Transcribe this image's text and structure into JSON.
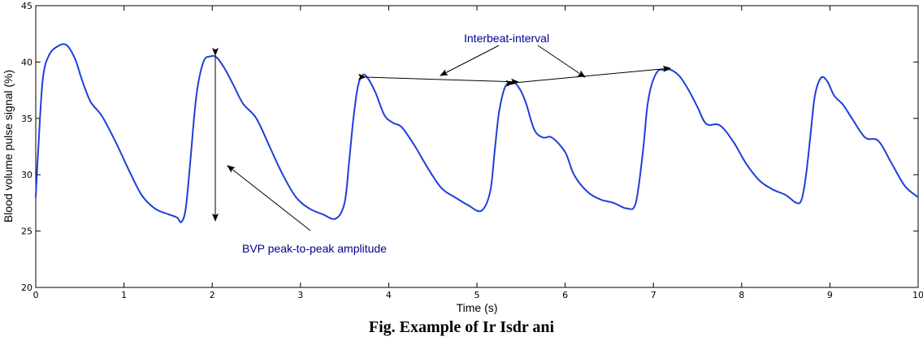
{
  "chart_data": {
    "type": "line",
    "title": "",
    "xlabel": "Time (s)",
    "ylabel": "Blood volume pulse signal (%)",
    "xlim": [
      0,
      10
    ],
    "ylim": [
      20,
      45
    ],
    "xticks": [
      0,
      1,
      2,
      3,
      4,
      5,
      6,
      7,
      8,
      9,
      10
    ],
    "yticks": [
      20,
      25,
      30,
      35,
      40,
      45
    ],
    "grid": false,
    "series": [
      {
        "color": "#1f3fd8",
        "x": [
          0,
          0.03,
          0.08,
          0.15,
          0.25,
          0.35,
          0.45,
          0.52,
          0.62,
          0.75,
          0.9,
          1.05,
          1.2,
          1.35,
          1.5,
          1.6,
          1.65,
          1.7,
          1.75,
          1.82,
          1.9,
          1.98,
          2.05,
          2.15,
          2.25,
          2.35,
          2.5,
          2.65,
          2.8,
          2.95,
          3.1,
          3.25,
          3.4,
          3.5,
          3.55,
          3.6,
          3.65,
          3.7,
          3.75,
          3.85,
          3.95,
          4.05,
          4.15,
          4.3,
          4.45,
          4.6,
          4.75,
          4.9,
          5.05,
          5.15,
          5.2,
          5.25,
          5.32,
          5.4,
          5.47,
          5.55,
          5.65,
          5.75,
          5.85,
          6.0,
          6.1,
          6.25,
          6.4,
          6.55,
          6.7,
          6.8,
          6.88,
          6.93,
          6.98,
          7.05,
          7.12,
          7.2,
          7.3,
          7.4,
          7.5,
          7.6,
          7.75,
          7.9,
          8.05,
          8.2,
          8.35,
          8.5,
          8.62,
          8.68,
          8.73,
          8.78,
          8.83,
          8.9,
          8.97,
          9.05,
          9.15,
          9.25,
          9.4,
          9.55,
          9.7,
          9.85,
          10.0
        ],
        "y": [
          28.0,
          32.5,
          38.5,
          40.6,
          41.4,
          41.5,
          40.2,
          38.5,
          36.5,
          35.2,
          33.0,
          30.5,
          28.2,
          27.0,
          26.5,
          26.2,
          25.8,
          27.0,
          31.0,
          37.0,
          40.0,
          40.5,
          40.4,
          39.3,
          37.8,
          36.3,
          35.0,
          32.5,
          30.0,
          28.0,
          27.0,
          26.5,
          26.1,
          27.5,
          31.0,
          35.0,
          37.8,
          38.8,
          38.7,
          37.3,
          35.3,
          34.6,
          34.2,
          32.5,
          30.5,
          28.8,
          28.0,
          27.3,
          26.8,
          28.5,
          32.0,
          35.5,
          37.8,
          38.2,
          37.8,
          36.5,
          34.0,
          33.3,
          33.3,
          32.0,
          30.0,
          28.5,
          27.8,
          27.5,
          27.0,
          27.5,
          32.0,
          36.0,
          38.0,
          39.2,
          39.3,
          39.3,
          38.7,
          37.5,
          36.0,
          34.5,
          34.4,
          33.0,
          31.0,
          29.5,
          28.7,
          28.2,
          27.5,
          27.8,
          30.0,
          33.5,
          37.0,
          38.6,
          38.3,
          37.0,
          36.2,
          35.0,
          33.3,
          33.0,
          31.0,
          29.0,
          28.0
        ]
      }
    ],
    "annotations": [
      {
        "text": "Interbeat-interval",
        "color": "#00008b"
      },
      {
        "text": "BVP peak-to-peak amplitude",
        "color": "#00008b"
      }
    ]
  },
  "caption": "Fig.  Example of  Ir  Isdr ani"
}
